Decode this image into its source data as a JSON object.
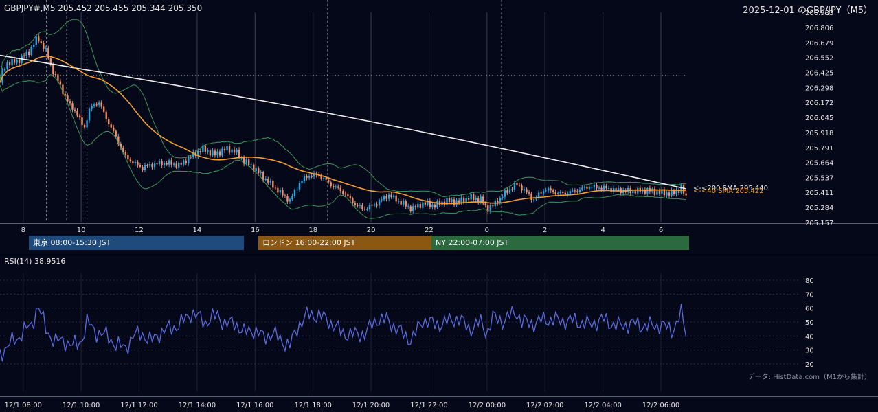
{
  "header": {
    "symbol_info": "GBPJPY#,M5 205.452 205.455 205.344 205.350",
    "title": "2025-12-01 のGBP/JPY（M5）"
  },
  "sessions": [
    {
      "label": "東京 08:00-15:30 JST",
      "color": "#1f4a7c"
    },
    {
      "label": "ロンドン 16:00-22:00 JST",
      "color": "#8a5812"
    },
    {
      "label": "NY 22:00-07:00 JST",
      "color": "#2a6a3e"
    }
  ],
  "annotations": {
    "sma200": "<-<200 SMA 205.440",
    "sma40": "<-<40 SMA 205.422"
  },
  "rsi": {
    "label": "RSI(14) 38.9516"
  },
  "footer": {
    "source": "データ: HistData.com（M1から集計）"
  },
  "colors": {
    "background": "#050818",
    "bull": "#29a6e6",
    "bear": "#f0906a",
    "sma40": "#f5a030",
    "sma200": "#f0f0f0",
    "bollinger": "#3c9a5a",
    "rsi": "#5a6de0"
  },
  "chart_data": [
    {
      "type": "candlestick",
      "title": "GBPJPY#,M5",
      "y_ticks": [
        206.933,
        206.806,
        206.679,
        206.552,
        206.425,
        206.298,
        206.172,
        206.045,
        205.918,
        205.791,
        205.664,
        205.537,
        205.411,
        205.284,
        205.157
      ],
      "ylim": [
        205.157,
        206.933
      ],
      "x_ticks": [
        "8",
        "10",
        "12",
        "14",
        "16",
        "18",
        "20",
        "22",
        "0",
        "2",
        "4",
        "6"
      ],
      "x_start_hour": 7.2,
      "x_end_hour": 30.9,
      "reference_level": 206.4,
      "price_path": [
        [
          7.2,
          206.35
        ],
        [
          7.4,
          206.5
        ],
        [
          7.8,
          206.52
        ],
        [
          8.2,
          206.6
        ],
        [
          8.5,
          206.72
        ],
        [
          8.8,
          206.6
        ],
        [
          9.0,
          206.45
        ],
        [
          9.3,
          206.3
        ],
        [
          9.6,
          206.15
        ],
        [
          9.8,
          206.1
        ],
        [
          10.0,
          206.0
        ],
        [
          10.1,
          205.95
        ],
        [
          10.3,
          206.12
        ],
        [
          10.6,
          206.18
        ],
        [
          10.9,
          206.02
        ],
        [
          11.2,
          205.88
        ],
        [
          11.5,
          205.72
        ],
        [
          11.8,
          205.66
        ],
        [
          12.1,
          205.62
        ],
        [
          12.5,
          205.65
        ],
        [
          13.0,
          205.66
        ],
        [
          13.4,
          205.64
        ],
        [
          13.8,
          205.72
        ],
        [
          14.2,
          205.78
        ],
        [
          14.6,
          205.73
        ],
        [
          15.0,
          205.78
        ],
        [
          15.3,
          205.76
        ],
        [
          15.6,
          205.68
        ],
        [
          15.9,
          205.63
        ],
        [
          16.2,
          205.56
        ],
        [
          16.6,
          205.47
        ],
        [
          16.9,
          205.4
        ],
        [
          17.2,
          205.34
        ],
        [
          17.5,
          205.48
        ],
        [
          17.8,
          205.55
        ],
        [
          18.2,
          205.56
        ],
        [
          18.6,
          205.48
        ],
        [
          19.0,
          205.42
        ],
        [
          19.5,
          205.3
        ],
        [
          19.8,
          205.27
        ],
        [
          20.2,
          205.32
        ],
        [
          20.6,
          205.39
        ],
        [
          21.0,
          205.33
        ],
        [
          21.4,
          205.27
        ],
        [
          21.8,
          205.32
        ],
        [
          22.2,
          205.3
        ],
        [
          22.6,
          205.34
        ],
        [
          23.0,
          205.33
        ],
        [
          23.4,
          205.37
        ],
        [
          23.8,
          205.35
        ],
        [
          24.0,
          205.27
        ],
        [
          24.2,
          205.3
        ],
        [
          24.6,
          205.4
        ],
        [
          25.0,
          205.48
        ],
        [
          25.2,
          205.45
        ],
        [
          25.6,
          205.35
        ],
        [
          26.0,
          205.44
        ],
        [
          26.5,
          205.4
        ],
        [
          27.0,
          205.42
        ],
        [
          27.5,
          205.46
        ],
        [
          28.0,
          205.45
        ],
        [
          28.5,
          205.43
        ],
        [
          29.0,
          205.42
        ],
        [
          29.5,
          205.43
        ],
        [
          30.0,
          205.41
        ],
        [
          30.4,
          205.4
        ],
        [
          30.7,
          205.45
        ],
        [
          30.9,
          205.35
        ]
      ]
    },
    {
      "type": "line",
      "title": "RSI(14)",
      "y_ticks": [
        80,
        70,
        60,
        50,
        40,
        30,
        20
      ],
      "ylim": [
        20,
        80
      ],
      "x_tick_labels": [
        "12/1 08:00",
        "12/1 10:00",
        "12/1 12:00",
        "12/1 14:00",
        "12/1 16:00",
        "12/1 18:00",
        "12/1 20:00",
        "12/1 22:00",
        "12/2 00:00",
        "12/2 02:00",
        "12/2 04:00",
        "12/2 06:00"
      ],
      "path": [
        [
          7.2,
          27
        ],
        [
          7.5,
          34
        ],
        [
          7.8,
          38
        ],
        [
          8.0,
          44
        ],
        [
          8.3,
          47
        ],
        [
          8.5,
          63
        ],
        [
          8.8,
          44
        ],
        [
          9.1,
          36
        ],
        [
          9.4,
          37
        ],
        [
          9.7,
          33
        ],
        [
          10.0,
          36
        ],
        [
          10.2,
          50
        ],
        [
          10.5,
          43
        ],
        [
          10.9,
          40
        ],
        [
          11.2,
          34
        ],
        [
          11.5,
          31
        ],
        [
          11.8,
          40
        ],
        [
          12.1,
          42
        ],
        [
          12.4,
          36
        ],
        [
          12.7,
          42
        ],
        [
          13.0,
          45
        ],
        [
          13.4,
          48
        ],
        [
          13.8,
          57
        ],
        [
          14.0,
          54
        ],
        [
          14.3,
          50
        ],
        [
          14.7,
          55
        ],
        [
          15.0,
          48
        ],
        [
          15.3,
          50
        ],
        [
          15.6,
          42
        ],
        [
          15.9,
          45
        ],
        [
          16.3,
          39
        ],
        [
          16.6,
          42
        ],
        [
          16.9,
          37
        ],
        [
          17.2,
          33
        ],
        [
          17.5,
          48
        ],
        [
          17.8,
          55
        ],
        [
          18.2,
          55
        ],
        [
          18.6,
          50
        ],
        [
          19.0,
          42
        ],
        [
          19.5,
          41
        ],
        [
          19.8,
          42
        ],
        [
          20.2,
          52
        ],
        [
          20.6,
          51
        ],
        [
          21.0,
          43
        ],
        [
          21.4,
          37
        ],
        [
          21.8,
          52
        ],
        [
          22.2,
          48
        ],
        [
          22.6,
          50
        ],
        [
          23.0,
          53
        ],
        [
          23.4,
          45
        ],
        [
          23.8,
          50
        ],
        [
          24.0,
          42
        ],
        [
          24.2,
          53
        ],
        [
          24.6,
          51
        ],
        [
          25.0,
          58
        ],
        [
          25.2,
          50
        ],
        [
          25.6,
          49
        ],
        [
          26.0,
          52
        ],
        [
          26.5,
          51
        ],
        [
          27.0,
          51
        ],
        [
          27.5,
          48
        ],
        [
          28.0,
          52
        ],
        [
          28.5,
          47
        ],
        [
          29.0,
          49
        ],
        [
          29.5,
          47
        ],
        [
          30.0,
          48
        ],
        [
          30.4,
          44
        ],
        [
          30.7,
          56
        ],
        [
          30.9,
          39
        ]
      ]
    }
  ]
}
